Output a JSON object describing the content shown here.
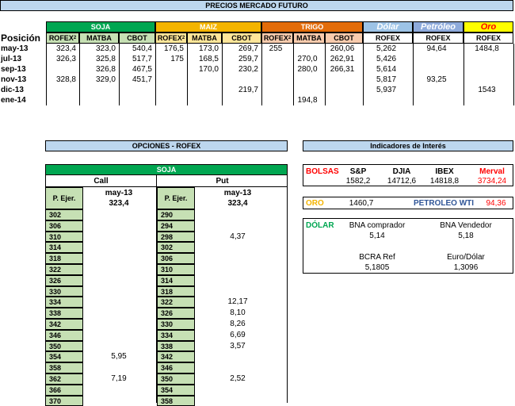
{
  "futures": {
    "title": "PRECIOS MERCADO FUTURO",
    "row_header": "Posición",
    "groups": {
      "soja": {
        "label": "SOJA",
        "color": "#00a651"
      },
      "maiz": {
        "label": "MAIZ",
        "color": "#f4b400"
      },
      "trigo": {
        "label": "TRIGO",
        "color": "#e36c0a"
      },
      "dolar": {
        "label": "Dólar",
        "color": "#9dc3e6"
      },
      "petroleo": {
        "label": "Petróleo",
        "color": "#8eaadb"
      },
      "oro": {
        "label": "Oro",
        "color": "#ffff00"
      }
    },
    "subcols": [
      "ROFEX",
      "MATBA",
      "CBOT",
      "ROFEX",
      "MATBA",
      "CBOT",
      "ROFEX",
      "MATBA",
      "CBOT",
      "ROFEX",
      "ROFEX",
      "ROFEX"
    ],
    "rofex_sup": "2",
    "rows": [
      {
        "pos": "may-13",
        "v": [
          "323,4",
          "323,0",
          "540,4",
          "176,5",
          "173,0",
          "269,7",
          "255",
          "",
          "260,06",
          "5,262",
          "94,64",
          "1484,8"
        ]
      },
      {
        "pos": "jul-13",
        "v": [
          "326,3",
          "325,8",
          "517,7",
          "175",
          "168,5",
          "259,7",
          "",
          "270,0",
          "262,91",
          "5,426",
          "",
          ""
        ]
      },
      {
        "pos": "sep-13",
        "v": [
          "",
          "326,8",
          "467,5",
          "",
          "170,0",
          "230,2",
          "",
          "280,0",
          "266,31",
          "5,614",
          "",
          ""
        ]
      },
      {
        "pos": "nov-13",
        "v": [
          "328,8",
          "329,0",
          "451,7",
          "",
          "",
          "",
          "",
          "",
          "",
          "5,817",
          "93,25",
          ""
        ]
      },
      {
        "pos": "dic-13",
        "v": [
          "",
          "",
          "",
          "",
          "",
          "219,7",
          "",
          "",
          "",
          "5,937",
          "",
          "1543"
        ]
      },
      {
        "pos": "ene-14",
        "v": [
          "",
          "",
          "",
          "",
          "",
          "",
          "",
          "194,8",
          "",
          "",
          "",
          ""
        ]
      }
    ]
  },
  "options": {
    "title": "OPCIONES - ROFEX",
    "product": "SOJA",
    "call_label": "Call",
    "put_label": "Put",
    "month": "may-13",
    "price": "323,4",
    "strike_label": "P. Ejer.",
    "call_rows": [
      {
        "strike": "302",
        "prem": ""
      },
      {
        "strike": "306",
        "prem": ""
      },
      {
        "strike": "310",
        "prem": ""
      },
      {
        "strike": "314",
        "prem": ""
      },
      {
        "strike": "318",
        "prem": ""
      },
      {
        "strike": "322",
        "prem": ""
      },
      {
        "strike": "326",
        "prem": ""
      },
      {
        "strike": "330",
        "prem": ""
      },
      {
        "strike": "334",
        "prem": ""
      },
      {
        "strike": "338",
        "prem": ""
      },
      {
        "strike": "342",
        "prem": ""
      },
      {
        "strike": "346",
        "prem": ""
      },
      {
        "strike": "350",
        "prem": ""
      },
      {
        "strike": "354",
        "prem": "5,95"
      },
      {
        "strike": "358",
        "prem": ""
      },
      {
        "strike": "362",
        "prem": "7,19"
      },
      {
        "strike": "366",
        "prem": ""
      },
      {
        "strike": "370",
        "prem": ""
      }
    ],
    "put_rows": [
      {
        "strike": "290",
        "prem": ""
      },
      {
        "strike": "294",
        "prem": ""
      },
      {
        "strike": "298",
        "prem": "4,37"
      },
      {
        "strike": "302",
        "prem": ""
      },
      {
        "strike": "306",
        "prem": ""
      },
      {
        "strike": "310",
        "prem": ""
      },
      {
        "strike": "314",
        "prem": ""
      },
      {
        "strike": "318",
        "prem": ""
      },
      {
        "strike": "322",
        "prem": "12,17"
      },
      {
        "strike": "326",
        "prem": "8,10"
      },
      {
        "strike": "330",
        "prem": "8,26"
      },
      {
        "strike": "334",
        "prem": "6,69"
      },
      {
        "strike": "338",
        "prem": "3,57"
      },
      {
        "strike": "342",
        "prem": ""
      },
      {
        "strike": "346",
        "prem": ""
      },
      {
        "strike": "350",
        "prem": "2,52"
      },
      {
        "strike": "354",
        "prem": ""
      },
      {
        "strike": "358",
        "prem": ""
      }
    ]
  },
  "indicators": {
    "title": "Indicadores de Interés",
    "bolsas": {
      "label": "BOLSAS",
      "headers": [
        "S&P",
        "DJIA",
        "IBEX",
        "Merval"
      ],
      "values": [
        "1582,2",
        "14712,6",
        "14818,8",
        "3734,24"
      ]
    },
    "oro": {
      "label": "ORO",
      "value": "1460,7",
      "pet_label": "PETROLEO WTI",
      "pet_value": "94,36"
    },
    "dolar": {
      "label": "DÓLAR",
      "bna_comprador_label": "BNA comprador",
      "bna_comprador": "5,14",
      "bna_vendedor_label": "BNA Vendedor",
      "bna_vendedor": "5,18",
      "bcra_label": "BCRA Ref",
      "bcra": "5,1805",
      "euro_label": "Euro/Dólar",
      "euro": "1,3096"
    },
    "colors": {
      "red": "#ff0000",
      "orange": "#f4b400",
      "green": "#00a651",
      "blue": "#2f5597"
    }
  }
}
